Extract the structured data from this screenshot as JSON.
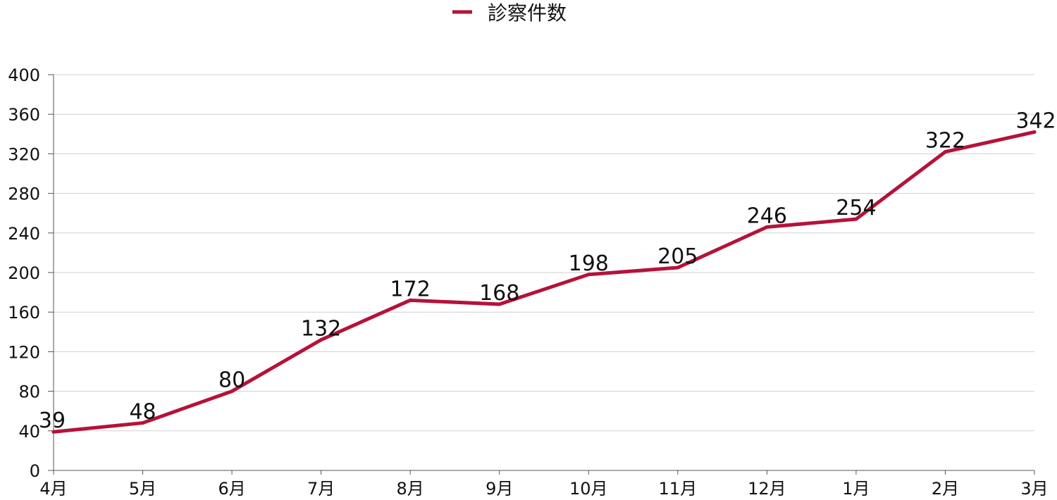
{
  "chart_data": {
    "type": "line",
    "categories": [
      "4月",
      "5月",
      "6月",
      "7月",
      "8月",
      "9月",
      "10月",
      "11月",
      "12月",
      "1月",
      "2月",
      "3月"
    ],
    "series": [
      {
        "name": "診察件数",
        "values": [
          39,
          48,
          80,
          132,
          172,
          168,
          198,
          205,
          246,
          254,
          322,
          342
        ],
        "color": "#b5123a"
      }
    ],
    "y_ticks": [
      "0",
      "40",
      "80",
      "120",
      "160",
      "200",
      "240",
      "280",
      "320",
      "360",
      "400"
    ],
    "ylim": [
      0,
      400
    ],
    "grid": true,
    "legend_position": "top-center",
    "data_labels": true
  }
}
